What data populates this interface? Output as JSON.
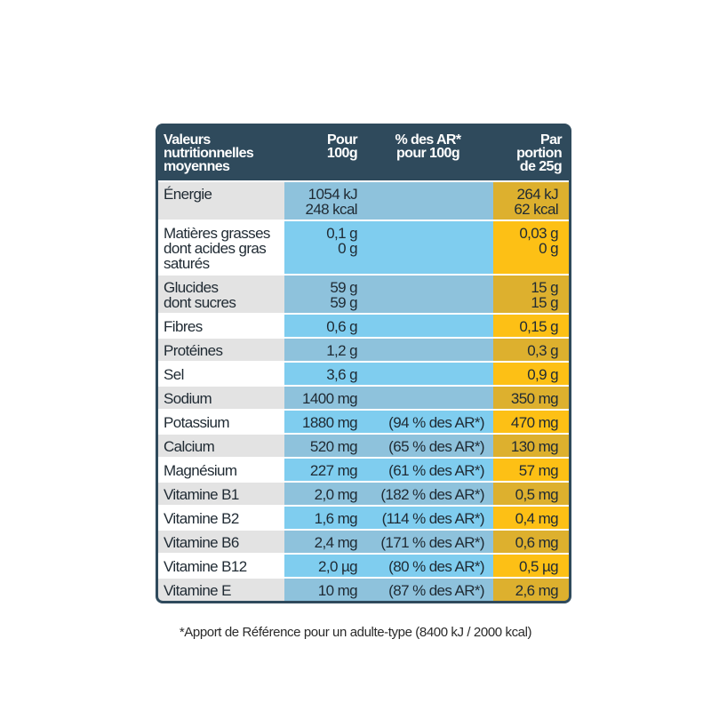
{
  "header": {
    "col1": [
      "Valeurs",
      "nutritionnelles",
      "moyennes"
    ],
    "col2": [
      "Pour",
      "100g"
    ],
    "col3": [
      "% des AR*",
      "pour 100g"
    ],
    "col4": [
      "Par",
      "portion",
      "de 25g"
    ]
  },
  "rows": [
    {
      "name": [
        "Énergie"
      ],
      "per100": [
        "1054 kJ",
        "248 kcal"
      ],
      "ar": "",
      "portion": [
        "264 kJ",
        "62 kcal"
      ]
    },
    {
      "name": [
        "Matières grasses",
        "dont acides gras",
        "saturés"
      ],
      "per100": [
        "0,1 g",
        "0 g"
      ],
      "ar": "",
      "portion": [
        "0,03 g",
        "0 g"
      ]
    },
    {
      "name": [
        "Glucides",
        "dont sucres"
      ],
      "per100": [
        "59 g",
        "59 g"
      ],
      "ar": "",
      "portion": [
        "15 g",
        "15 g"
      ]
    },
    {
      "name": [
        "Fibres"
      ],
      "per100": [
        "0,6 g"
      ],
      "ar": "",
      "portion": [
        "0,15 g"
      ]
    },
    {
      "name": [
        "Protéines"
      ],
      "per100": [
        "1,2 g"
      ],
      "ar": "",
      "portion": [
        "0,3 g"
      ]
    },
    {
      "name": [
        "Sel"
      ],
      "per100": [
        "3,6 g"
      ],
      "ar": "",
      "portion": [
        "0,9 g"
      ]
    },
    {
      "name": [
        "Sodium"
      ],
      "per100": [
        "1400 mg"
      ],
      "ar": "",
      "portion": [
        "350 mg"
      ]
    },
    {
      "name": [
        "Potassium"
      ],
      "per100": [
        "1880 mg"
      ],
      "ar": "(94 % des AR*)",
      "portion": [
        "470 mg"
      ]
    },
    {
      "name": [
        "Calcium"
      ],
      "per100": [
        "520 mg"
      ],
      "ar": "(65 % des AR*)",
      "portion": [
        "130 mg"
      ]
    },
    {
      "name": [
        "Magnésium"
      ],
      "per100": [
        "227 mg"
      ],
      "ar": "(61 % des AR*)",
      "portion": [
        "57 mg"
      ]
    },
    {
      "name": [
        "Vitamine B1"
      ],
      "per100": [
        "2,0 mg"
      ],
      "ar": "(182 % des AR*)",
      "portion": [
        "0,5 mg"
      ]
    },
    {
      "name": [
        "Vitamine B2"
      ],
      "per100": [
        "1,6 mg"
      ],
      "ar": "(114 % des AR*)",
      "portion": [
        "0,4 mg"
      ]
    },
    {
      "name": [
        "Vitamine B6"
      ],
      "per100": [
        "2,4 mg"
      ],
      "ar": "(171 % des AR*)",
      "portion": [
        "0,6 mg"
      ]
    },
    {
      "name": [
        "Vitamine B12"
      ],
      "per100": [
        "2,0 µg"
      ],
      "ar": "(80 % des AR*)",
      "portion": [
        "0,5 µg"
      ]
    },
    {
      "name": [
        "Vitamine E"
      ],
      "per100": [
        "10 mg"
      ],
      "ar": "(87 % des AR*)",
      "portion": [
        "2,6 mg"
      ]
    }
  ],
  "footnote": "*Apport de Référence pour un adulte-type (8400 kJ / 2000 kcal)",
  "colors": {
    "header": "#2f4a5c",
    "name_odd": "#e3e3e3",
    "name_even": "#ffffff",
    "blue_odd": "#8ec2dc",
    "blue_even": "#7fcdef",
    "yellow_odd": "#ddb02e",
    "yellow_even": "#fdc015"
  }
}
